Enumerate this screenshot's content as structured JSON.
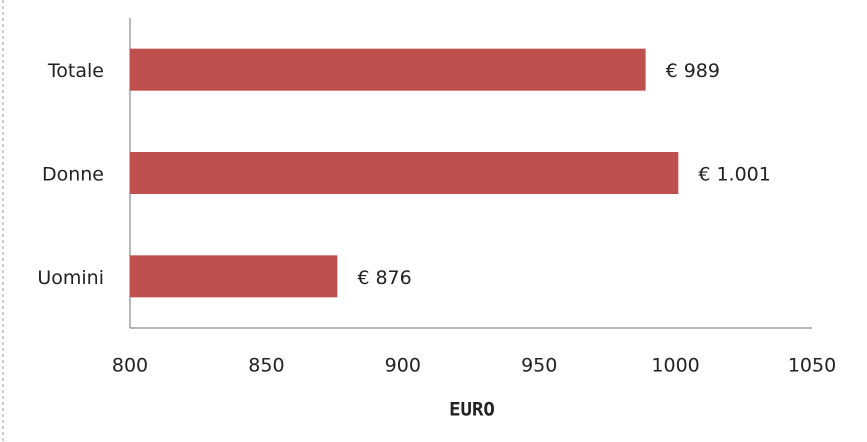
{
  "chart_data": {
    "type": "bar",
    "orientation": "horizontal",
    "categories": [
      "Totale",
      "Donne",
      "Uomini"
    ],
    "values": [
      989,
      1001,
      876
    ],
    "value_labels": [
      "€ 989",
      "€ 1.001",
      "€ 876"
    ],
    "color": "#c0504d",
    "xlabel": "EURO",
    "xlim": [
      800,
      1050
    ],
    "xticks": [
      800,
      850,
      900,
      950,
      1000,
      1050
    ],
    "grid": false
  }
}
